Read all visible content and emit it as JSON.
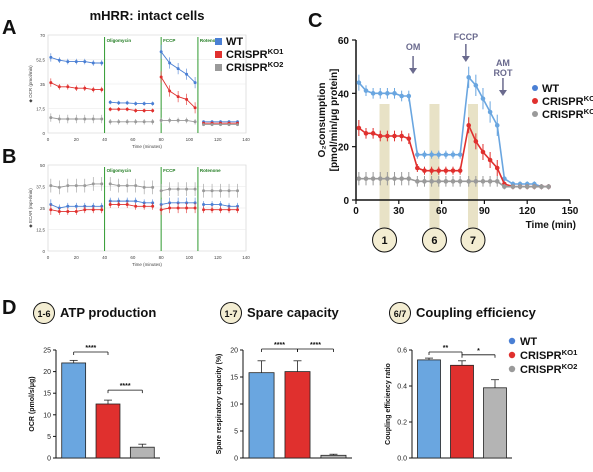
{
  "panels": {
    "a": "A",
    "b": "B",
    "c": "C",
    "d": "D"
  },
  "colors": {
    "wt": "#4a7fd4",
    "ko1": "#e0302e",
    "ko2": "#9a9a9a",
    "wt_light": "#6aa6e0",
    "inj_green": "#2f9a2f",
    "time_band": "#e8e2c6",
    "arrow": "#6a6a8e"
  },
  "top_title": "mHRR: intact cells",
  "injections_small": [
    "Oligomycin",
    "FCCP",
    "Rotenone"
  ],
  "injections_c": {
    "om": "OM",
    "fccp": "FCCP",
    "am": "AM",
    "rot": "ROT"
  },
  "legend_items": [
    {
      "base": "WT",
      "sup": ""
    },
    {
      "base": "CRISPR",
      "sup": "KO1"
    },
    {
      "base": "CRISPR",
      "sup": "KO2"
    }
  ],
  "time_badges": [
    "1",
    "6",
    "7"
  ],
  "chart_data": [
    {
      "type": "line",
      "panel": "A",
      "xlabel": "Time (minutes)",
      "ylabel": "◆ OCR (pmol/min)",
      "xlim": [
        0,
        140
      ],
      "ylim": [
        0,
        70
      ],
      "xticks": [
        "0",
        "20",
        "40",
        "60",
        "80",
        "100",
        "120",
        "140"
      ],
      "yticks": [
        "0",
        "17,5",
        "35",
        "52,5",
        "70"
      ],
      "x": [
        2,
        8,
        14,
        20,
        26,
        32,
        38,
        44,
        50,
        56,
        62,
        68,
        74,
        80,
        86,
        92,
        98,
        104,
        110,
        116,
        122,
        128,
        134
      ],
      "series": [
        {
          "name": "WT",
          "values": [
            54,
            52,
            51,
            51,
            51,
            50,
            50,
            22,
            21.5,
            21.5,
            21,
            21,
            21,
            58,
            50,
            46,
            42,
            36,
            8,
            8,
            8,
            8,
            8
          ],
          "errors": [
            3,
            2,
            2,
            2,
            2,
            2,
            2,
            1.5,
            1.5,
            1.5,
            1.5,
            1.5,
            1.5,
            5,
            4,
            4,
            4,
            4,
            1,
            1,
            1,
            1,
            1
          ]
        },
        {
          "name": "CRISPR KO1",
          "values": [
            36,
            33,
            33,
            32,
            32,
            31,
            31,
            17,
            17,
            17,
            16,
            16,
            16,
            40,
            30,
            26,
            24,
            18,
            7,
            7,
            7,
            7,
            7
          ],
          "errors": [
            3,
            2,
            2,
            2,
            2,
            2,
            2,
            1.5,
            1.5,
            1.5,
            1.5,
            1.5,
            1.5,
            4,
            4,
            4,
            4,
            4,
            1,
            1,
            1,
            1,
            1
          ]
        },
        {
          "name": "CRISPR KO2",
          "values": [
            11,
            10,
            10,
            10,
            10,
            10,
            10,
            8,
            8,
            8,
            8,
            8,
            8,
            9,
            9,
            9,
            9,
            8,
            6,
            6,
            6,
            6,
            6
          ],
          "errors": [
            3,
            3,
            3,
            3,
            3,
            3,
            3,
            2,
            2,
            2,
            2,
            2,
            2,
            2,
            2,
            2,
            2,
            2,
            1,
            1,
            1,
            1,
            1
          ]
        }
      ]
    },
    {
      "type": "line",
      "panel": "B",
      "xlabel": "Time (minutes)",
      "ylabel": "◆ ECAR (mpH/min)",
      "xlim": [
        0,
        140
      ],
      "ylim": [
        0,
        50
      ],
      "xticks": [
        "0",
        "20",
        "40",
        "60",
        "80",
        "100",
        "120",
        "140"
      ],
      "yticks": [
        "0",
        "12,5",
        "25",
        "37,5",
        "50"
      ],
      "x": [
        2,
        8,
        14,
        20,
        26,
        32,
        38,
        44,
        50,
        56,
        62,
        68,
        74,
        80,
        86,
        92,
        98,
        104,
        110,
        116,
        122,
        128,
        134
      ],
      "series": [
        {
          "name": "WT",
          "values": [
            27,
            25,
            26,
            26,
            26,
            26,
            26,
            29,
            29,
            29,
            29,
            28,
            28,
            27,
            28,
            28,
            28,
            28,
            27,
            27,
            27,
            26,
            26
          ],
          "errors": [
            3,
            2,
            2,
            2,
            2,
            2,
            2,
            2,
            2,
            2,
            2,
            2,
            2,
            3,
            3,
            3,
            3,
            3,
            2,
            2,
            2,
            2,
            2
          ]
        },
        {
          "name": "CRISPR KO1",
          "values": [
            24,
            23,
            23,
            23,
            24,
            24,
            24,
            27,
            27,
            27,
            26,
            26,
            26,
            24,
            25,
            25,
            25,
            25,
            24,
            24,
            24,
            24,
            24
          ],
          "errors": [
            3,
            2,
            2,
            2,
            2,
            2,
            2,
            2,
            2,
            2,
            2,
            2,
            2,
            3,
            3,
            3,
            3,
            3,
            2,
            2,
            2,
            2,
            2
          ]
        },
        {
          "name": "CRISPR KO2",
          "values": [
            38,
            37,
            38,
            38,
            38,
            39,
            39,
            39,
            38,
            38,
            38,
            37,
            37,
            35,
            36,
            36,
            36,
            36,
            35,
            35,
            35,
            35,
            35
          ],
          "errors": [
            4,
            4,
            4,
            4,
            4,
            4,
            4,
            4,
            4,
            4,
            4,
            4,
            4,
            4,
            4,
            4,
            4,
            4,
            4,
            4,
            4,
            4,
            4
          ]
        }
      ]
    },
    {
      "type": "line",
      "panel": "C",
      "xlabel": "Time (min)",
      "ylabel": "O₂consumption",
      "ylabel2": "[pmol/min/μg protein]",
      "xlim": [
        0,
        150
      ],
      "ylim": [
        0,
        60
      ],
      "xticks": [
        "0",
        "30",
        "60",
        "90",
        "120",
        "150"
      ],
      "yticks": [
        "0",
        "20",
        "40",
        "60"
      ],
      "x": [
        2,
        7,
        12,
        17,
        22,
        27,
        32,
        37,
        43,
        48,
        53,
        58,
        63,
        68,
        73,
        79,
        84,
        89,
        94,
        99,
        104,
        110,
        115,
        120,
        125,
        130,
        135
      ],
      "series": [
        {
          "name": "WT",
          "values": [
            44,
            41,
            40,
            40,
            40,
            40,
            39,
            39,
            17,
            17,
            17,
            17,
            17,
            17,
            17,
            46,
            43,
            38,
            33,
            28,
            8,
            6,
            6,
            6,
            6,
            5,
            5
          ],
          "errors": [
            3,
            2,
            2,
            2,
            2,
            2,
            2,
            2,
            1.5,
            1.5,
            1.5,
            1.5,
            1.5,
            1.5,
            1.5,
            4,
            4,
            4,
            4,
            4,
            1,
            1,
            1,
            1,
            1,
            1,
            1
          ]
        },
        {
          "name": "CRISPR KO1",
          "values": [
            27,
            25,
            25,
            24,
            24,
            24,
            24,
            23,
            12,
            11,
            11,
            11,
            11,
            11,
            11,
            28,
            22,
            18,
            15,
            12,
            6,
            5,
            5,
            5,
            5,
            5,
            5
          ],
          "errors": [
            3,
            2,
            2,
            2,
            2,
            2,
            2,
            2,
            1.5,
            1.5,
            1.5,
            1.5,
            1.5,
            1.5,
            1.5,
            3,
            3,
            3,
            3,
            3,
            1,
            1,
            1,
            1,
            1,
            1,
            1
          ]
        },
        {
          "name": "CRISPR KO2",
          "values": [
            8,
            8,
            8,
            8,
            8,
            8,
            8,
            8,
            7,
            7,
            7,
            7,
            7,
            7,
            7,
            7,
            7,
            7,
            7,
            7,
            5,
            5,
            5,
            5,
            5,
            5,
            5
          ],
          "errors": [
            2.5,
            2.5,
            2.5,
            2.5,
            2.5,
            2.5,
            2.5,
            2.5,
            2,
            2,
            2,
            2,
            2,
            2,
            2,
            2,
            2,
            2,
            2,
            2,
            1,
            1,
            1,
            1,
            1,
            1,
            1
          ]
        }
      ],
      "time_bands": [
        {
          "x": 20
        },
        {
          "x": 55
        },
        {
          "x": 82
        }
      ],
      "injection_times": {
        "om": 40,
        "fccp": 77,
        "am_rot": 103
      }
    },
    {
      "type": "bar",
      "panel": "D1",
      "badge": "1-6",
      "title": "ATP production",
      "ylabel": "OCR (pmol/s/μg)",
      "ylim": [
        0,
        25
      ],
      "yticks": [
        "0",
        "5",
        "10",
        "15",
        "20",
        "25"
      ],
      "categories": [
        "WT",
        "CRISPR KO1",
        "CRISPR KO2"
      ],
      "values": [
        22.0,
        12.5,
        2.5
      ],
      "errors": [
        0.6,
        0.9,
        0.7
      ],
      "sig": [
        {
          "from": 0,
          "to": 1,
          "label": "****"
        },
        {
          "from": 1,
          "to": 2,
          "label": "****"
        }
      ]
    },
    {
      "type": "bar",
      "panel": "D2",
      "badge": "1-7",
      "title": "Spare capacity",
      "ylabel": "Spare respiratory capacity (%)",
      "ylim": [
        0,
        20
      ],
      "yticks": [
        "0",
        "5",
        "10",
        "15",
        "20"
      ],
      "categories": [
        "WT",
        "CRISPR KO1",
        "CRISPR KO2"
      ],
      "values": [
        15.8,
        16.0,
        0.5
      ],
      "errors": [
        2.2,
        2.0,
        0.2
      ],
      "sig": [
        {
          "from": 0,
          "to": 1,
          "label": "****"
        },
        {
          "from": 1,
          "to": 2,
          "label": "****"
        }
      ]
    },
    {
      "type": "bar",
      "panel": "D3",
      "badge": "6/7",
      "title": "Coupling efficiency",
      "ylabel": "Coupling efficiency ratio",
      "ylim": [
        0,
        0.6
      ],
      "yticks": [
        "0.0",
        "0.2",
        "0.4",
        "0.6"
      ],
      "categories": [
        "WT",
        "CRISPR KO1",
        "CRISPR KO2"
      ],
      "values": [
        0.545,
        0.515,
        0.39
      ],
      "errors": [
        0.01,
        0.025,
        0.045
      ],
      "sig": [
        {
          "from": 0,
          "to": 1,
          "label": "**"
        },
        {
          "from": 1,
          "to": 2,
          "label": "*"
        }
      ]
    }
  ]
}
